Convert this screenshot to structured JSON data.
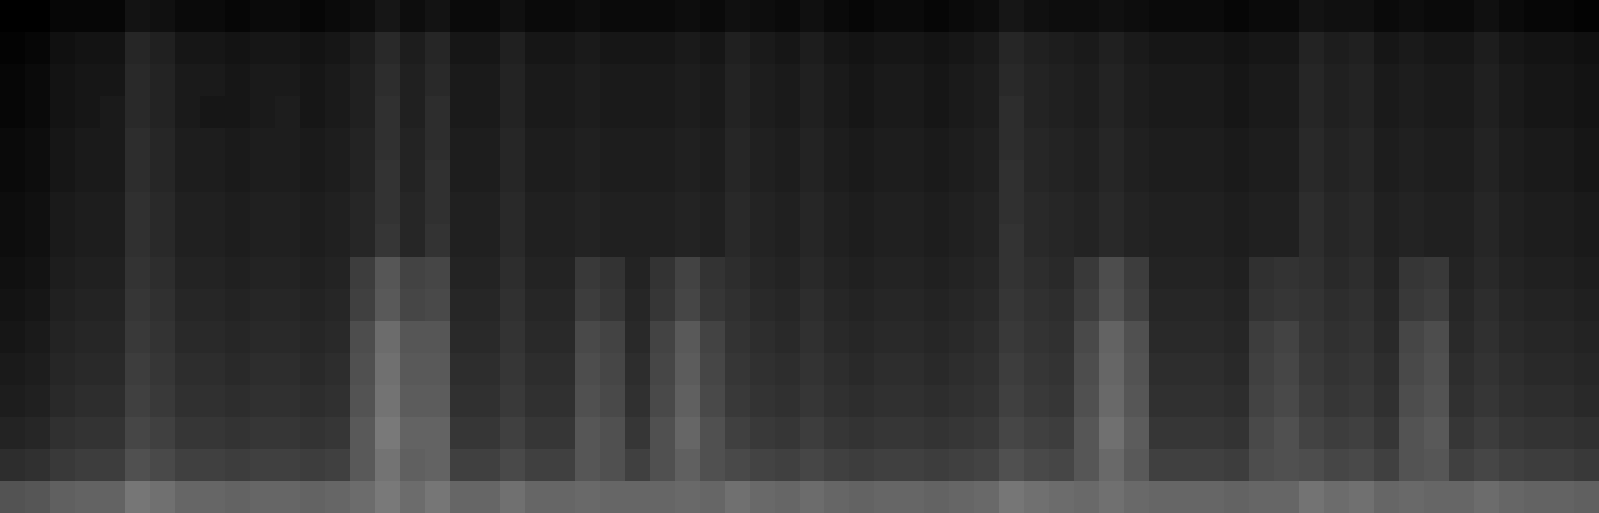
{
  "chart_data": {
    "type": "heatmap",
    "color": "#ffffff",
    "tick_labels": false,
    "zlim": [
      0,
      80
    ],
    "values": [
      [
        0,
        0,
        2,
        2,
        2,
        6,
        5,
        3,
        3,
        2,
        3,
        3,
        2,
        3,
        4,
        7,
        4,
        6,
        3,
        3,
        5,
        3,
        3,
        4,
        3,
        3,
        3,
        4,
        3,
        5,
        4,
        3,
        5,
        3,
        2,
        3,
        3,
        2,
        3,
        4,
        7,
        5,
        4,
        4,
        5,
        4,
        3,
        3,
        3,
        2,
        3,
        3,
        6,
        5,
        5,
        3,
        4,
        3,
        3,
        5,
        3,
        2,
        2,
        1
      ],
      [
        1,
        2,
        5,
        6,
        6,
        12,
        10,
        7,
        7,
        6,
        7,
        7,
        6,
        7,
        9,
        13,
        9,
        12,
        7,
        7,
        10,
        7,
        7,
        8,
        7,
        7,
        7,
        8,
        7,
        10,
        8,
        7,
        9,
        7,
        6,
        7,
        7,
        6,
        7,
        8,
        12,
        10,
        9,
        8,
        10,
        8,
        7,
        7,
        7,
        6,
        7,
        7,
        11,
        9,
        10,
        7,
        8,
        7,
        7,
        9,
        7,
        6,
        6,
        5
      ],
      [
        2,
        3,
        6,
        7,
        7,
        13,
        11,
        8,
        8,
        7,
        8,
        8,
        7,
        8,
        10,
        14,
        10,
        13,
        8,
        8,
        11,
        8,
        8,
        9,
        8,
        8,
        8,
        9,
        8,
        11,
        9,
        8,
        10,
        8,
        7,
        8,
        8,
        7,
        8,
        9,
        13,
        11,
        10,
        9,
        11,
        9,
        8,
        8,
        8,
        7,
        8,
        8,
        12,
        10,
        11,
        8,
        9,
        8,
        8,
        10,
        8,
        7,
        7,
        6
      ],
      [
        2,
        3,
        6,
        7,
        8,
        13,
        11,
        8,
        7,
        7,
        8,
        9,
        7,
        8,
        10,
        15,
        10,
        14,
        8,
        8,
        11,
        8,
        8,
        9,
        8,
        8,
        8,
        9,
        8,
        11,
        9,
        8,
        10,
        8,
        7,
        8,
        8,
        7,
        8,
        9,
        14,
        11,
        10,
        9,
        11,
        9,
        8,
        8,
        8,
        7,
        8,
        8,
        12,
        10,
        11,
        8,
        9,
        8,
        8,
        10,
        8,
        7,
        7,
        6
      ],
      [
        3,
        4,
        7,
        8,
        8,
        14,
        12,
        9,
        9,
        8,
        9,
        9,
        8,
        9,
        11,
        15,
        11,
        14,
        9,
        9,
        12,
        9,
        9,
        10,
        9,
        9,
        9,
        10,
        9,
        12,
        10,
        9,
        11,
        9,
        8,
        9,
        9,
        8,
        9,
        10,
        14,
        12,
        11,
        10,
        12,
        10,
        9,
        9,
        9,
        8,
        9,
        9,
        13,
        11,
        12,
        9,
        10,
        9,
        9,
        11,
        9,
        8,
        8,
        7
      ],
      [
        3,
        4,
        7,
        8,
        8,
        14,
        12,
        9,
        9,
        8,
        9,
        9,
        8,
        9,
        11,
        16,
        11,
        15,
        9,
        9,
        12,
        9,
        9,
        10,
        9,
        9,
        9,
        10,
        9,
        12,
        10,
        9,
        11,
        9,
        8,
        9,
        9,
        8,
        9,
        10,
        15,
        12,
        11,
        10,
        12,
        10,
        9,
        9,
        9,
        8,
        9,
        9,
        13,
        11,
        12,
        9,
        10,
        9,
        9,
        11,
        9,
        8,
        8,
        7
      ],
      [
        4,
        5,
        8,
        9,
        9,
        15,
        13,
        10,
        10,
        9,
        10,
        10,
        9,
        10,
        12,
        16,
        12,
        15,
        10,
        10,
        13,
        10,
        10,
        11,
        10,
        10,
        10,
        11,
        10,
        13,
        11,
        10,
        12,
        10,
        9,
        10,
        10,
        9,
        10,
        11,
        15,
        13,
        12,
        11,
        13,
        11,
        10,
        10,
        10,
        9,
        10,
        10,
        14,
        12,
        13,
        10,
        11,
        10,
        10,
        12,
        10,
        9,
        9,
        8
      ],
      [
        4,
        5,
        8,
        9,
        9,
        15,
        13,
        10,
        10,
        9,
        10,
        10,
        9,
        10,
        12,
        17,
        12,
        16,
        10,
        10,
        13,
        10,
        10,
        11,
        10,
        10,
        10,
        11,
        10,
        13,
        11,
        10,
        12,
        10,
        9,
        10,
        10,
        9,
        10,
        11,
        16,
        13,
        12,
        11,
        13,
        11,
        10,
        10,
        10,
        9,
        10,
        10,
        14,
        12,
        13,
        10,
        11,
        10,
        10,
        12,
        10,
        9,
        9,
        8
      ],
      [
        5,
        6,
        9,
        10,
        10,
        16,
        14,
        11,
        11,
        10,
        11,
        11,
        10,
        11,
        19,
        27,
        21,
        22,
        11,
        11,
        14,
        11,
        11,
        18,
        16,
        11,
        16,
        21,
        16,
        14,
        12,
        11,
        13,
        11,
        10,
        11,
        11,
        10,
        11,
        12,
        16,
        14,
        13,
        18,
        24,
        19,
        11,
        11,
        11,
        10,
        15,
        16,
        15,
        13,
        14,
        11,
        17,
        18,
        11,
        13,
        11,
        10,
        10,
        9
      ],
      [
        6,
        7,
        10,
        11,
        11,
        17,
        15,
        12,
        12,
        11,
        12,
        12,
        11,
        12,
        20,
        28,
        22,
        23,
        12,
        12,
        15,
        12,
        12,
        19,
        17,
        12,
        17,
        22,
        17,
        15,
        13,
        12,
        14,
        12,
        11,
        12,
        12,
        11,
        12,
        13,
        17,
        15,
        14,
        19,
        25,
        20,
        12,
        12,
        12,
        11,
        16,
        17,
        16,
        14,
        15,
        12,
        18,
        19,
        12,
        14,
        12,
        11,
        11,
        10
      ],
      [
        7,
        8,
        11,
        12,
        12,
        18,
        16,
        13,
        13,
        12,
        13,
        13,
        12,
        13,
        24,
        34,
        27,
        27,
        13,
        13,
        16,
        13,
        13,
        23,
        21,
        13,
        21,
        28,
        21,
        16,
        14,
        13,
        15,
        13,
        12,
        13,
        13,
        12,
        13,
        14,
        18,
        16,
        15,
        23,
        31,
        25,
        13,
        13,
        13,
        12,
        19,
        21,
        17,
        15,
        16,
        13,
        22,
        24,
        13,
        15,
        13,
        12,
        12,
        11
      ],
      [
        8,
        9,
        12,
        13,
        13,
        19,
        17,
        14,
        14,
        13,
        14,
        14,
        13,
        14,
        25,
        35,
        28,
        28,
        14,
        14,
        17,
        14,
        14,
        24,
        22,
        14,
        22,
        29,
        22,
        17,
        15,
        14,
        16,
        14,
        13,
        14,
        14,
        13,
        14,
        15,
        19,
        17,
        16,
        24,
        32,
        26,
        14,
        14,
        14,
        13,
        20,
        22,
        18,
        16,
        17,
        14,
        23,
        25,
        14,
        16,
        14,
        13,
        13,
        12
      ],
      [
        9,
        10,
        13,
        14,
        14,
        20,
        18,
        15,
        15,
        14,
        15,
        15,
        14,
        15,
        26,
        36,
        29,
        29,
        15,
        15,
        18,
        15,
        15,
        25,
        23,
        15,
        23,
        30,
        23,
        18,
        16,
        15,
        17,
        15,
        14,
        15,
        15,
        14,
        15,
        16,
        20,
        18,
        17,
        25,
        33,
        27,
        15,
        15,
        15,
        14,
        21,
        23,
        19,
        17,
        18,
        15,
        24,
        26,
        15,
        17,
        15,
        14,
        14,
        13
      ],
      [
        11,
        12,
        15,
        16,
        16,
        22,
        20,
        17,
        17,
        16,
        17,
        17,
        16,
        17,
        28,
        38,
        31,
        31,
        17,
        17,
        20,
        17,
        17,
        27,
        25,
        17,
        25,
        32,
        25,
        20,
        18,
        17,
        19,
        17,
        16,
        17,
        17,
        16,
        17,
        18,
        22,
        20,
        19,
        27,
        35,
        29,
        17,
        17,
        17,
        16,
        23,
        25,
        21,
        19,
        20,
        17,
        26,
        28,
        17,
        19,
        17,
        16,
        16,
        15
      ],
      [
        14,
        15,
        18,
        19,
        19,
        25,
        23,
        20,
        20,
        19,
        20,
        20,
        19,
        20,
        28,
        36,
        30,
        31,
        20,
        20,
        23,
        20,
        20,
        27,
        25,
        20,
        25,
        30,
        25,
        23,
        21,
        20,
        22,
        20,
        19,
        20,
        20,
        19,
        20,
        21,
        25,
        23,
        22,
        27,
        33,
        28,
        20,
        20,
        20,
        19,
        24,
        25,
        24,
        22,
        23,
        20,
        26,
        27,
        20,
        22,
        20,
        19,
        19,
        18
      ],
      [
        26,
        27,
        30,
        31,
        31,
        37,
        35,
        32,
        32,
        31,
        32,
        32,
        31,
        32,
        34,
        38,
        34,
        37,
        32,
        32,
        35,
        32,
        32,
        33,
        32,
        32,
        32,
        33,
        32,
        35,
        33,
        32,
        34,
        32,
        31,
        32,
        32,
        31,
        32,
        33,
        37,
        35,
        34,
        33,
        35,
        33,
        32,
        32,
        32,
        31,
        32,
        32,
        36,
        34,
        35,
        32,
        33,
        32,
        32,
        34,
        32,
        31,
        31,
        30
      ]
    ]
  }
}
